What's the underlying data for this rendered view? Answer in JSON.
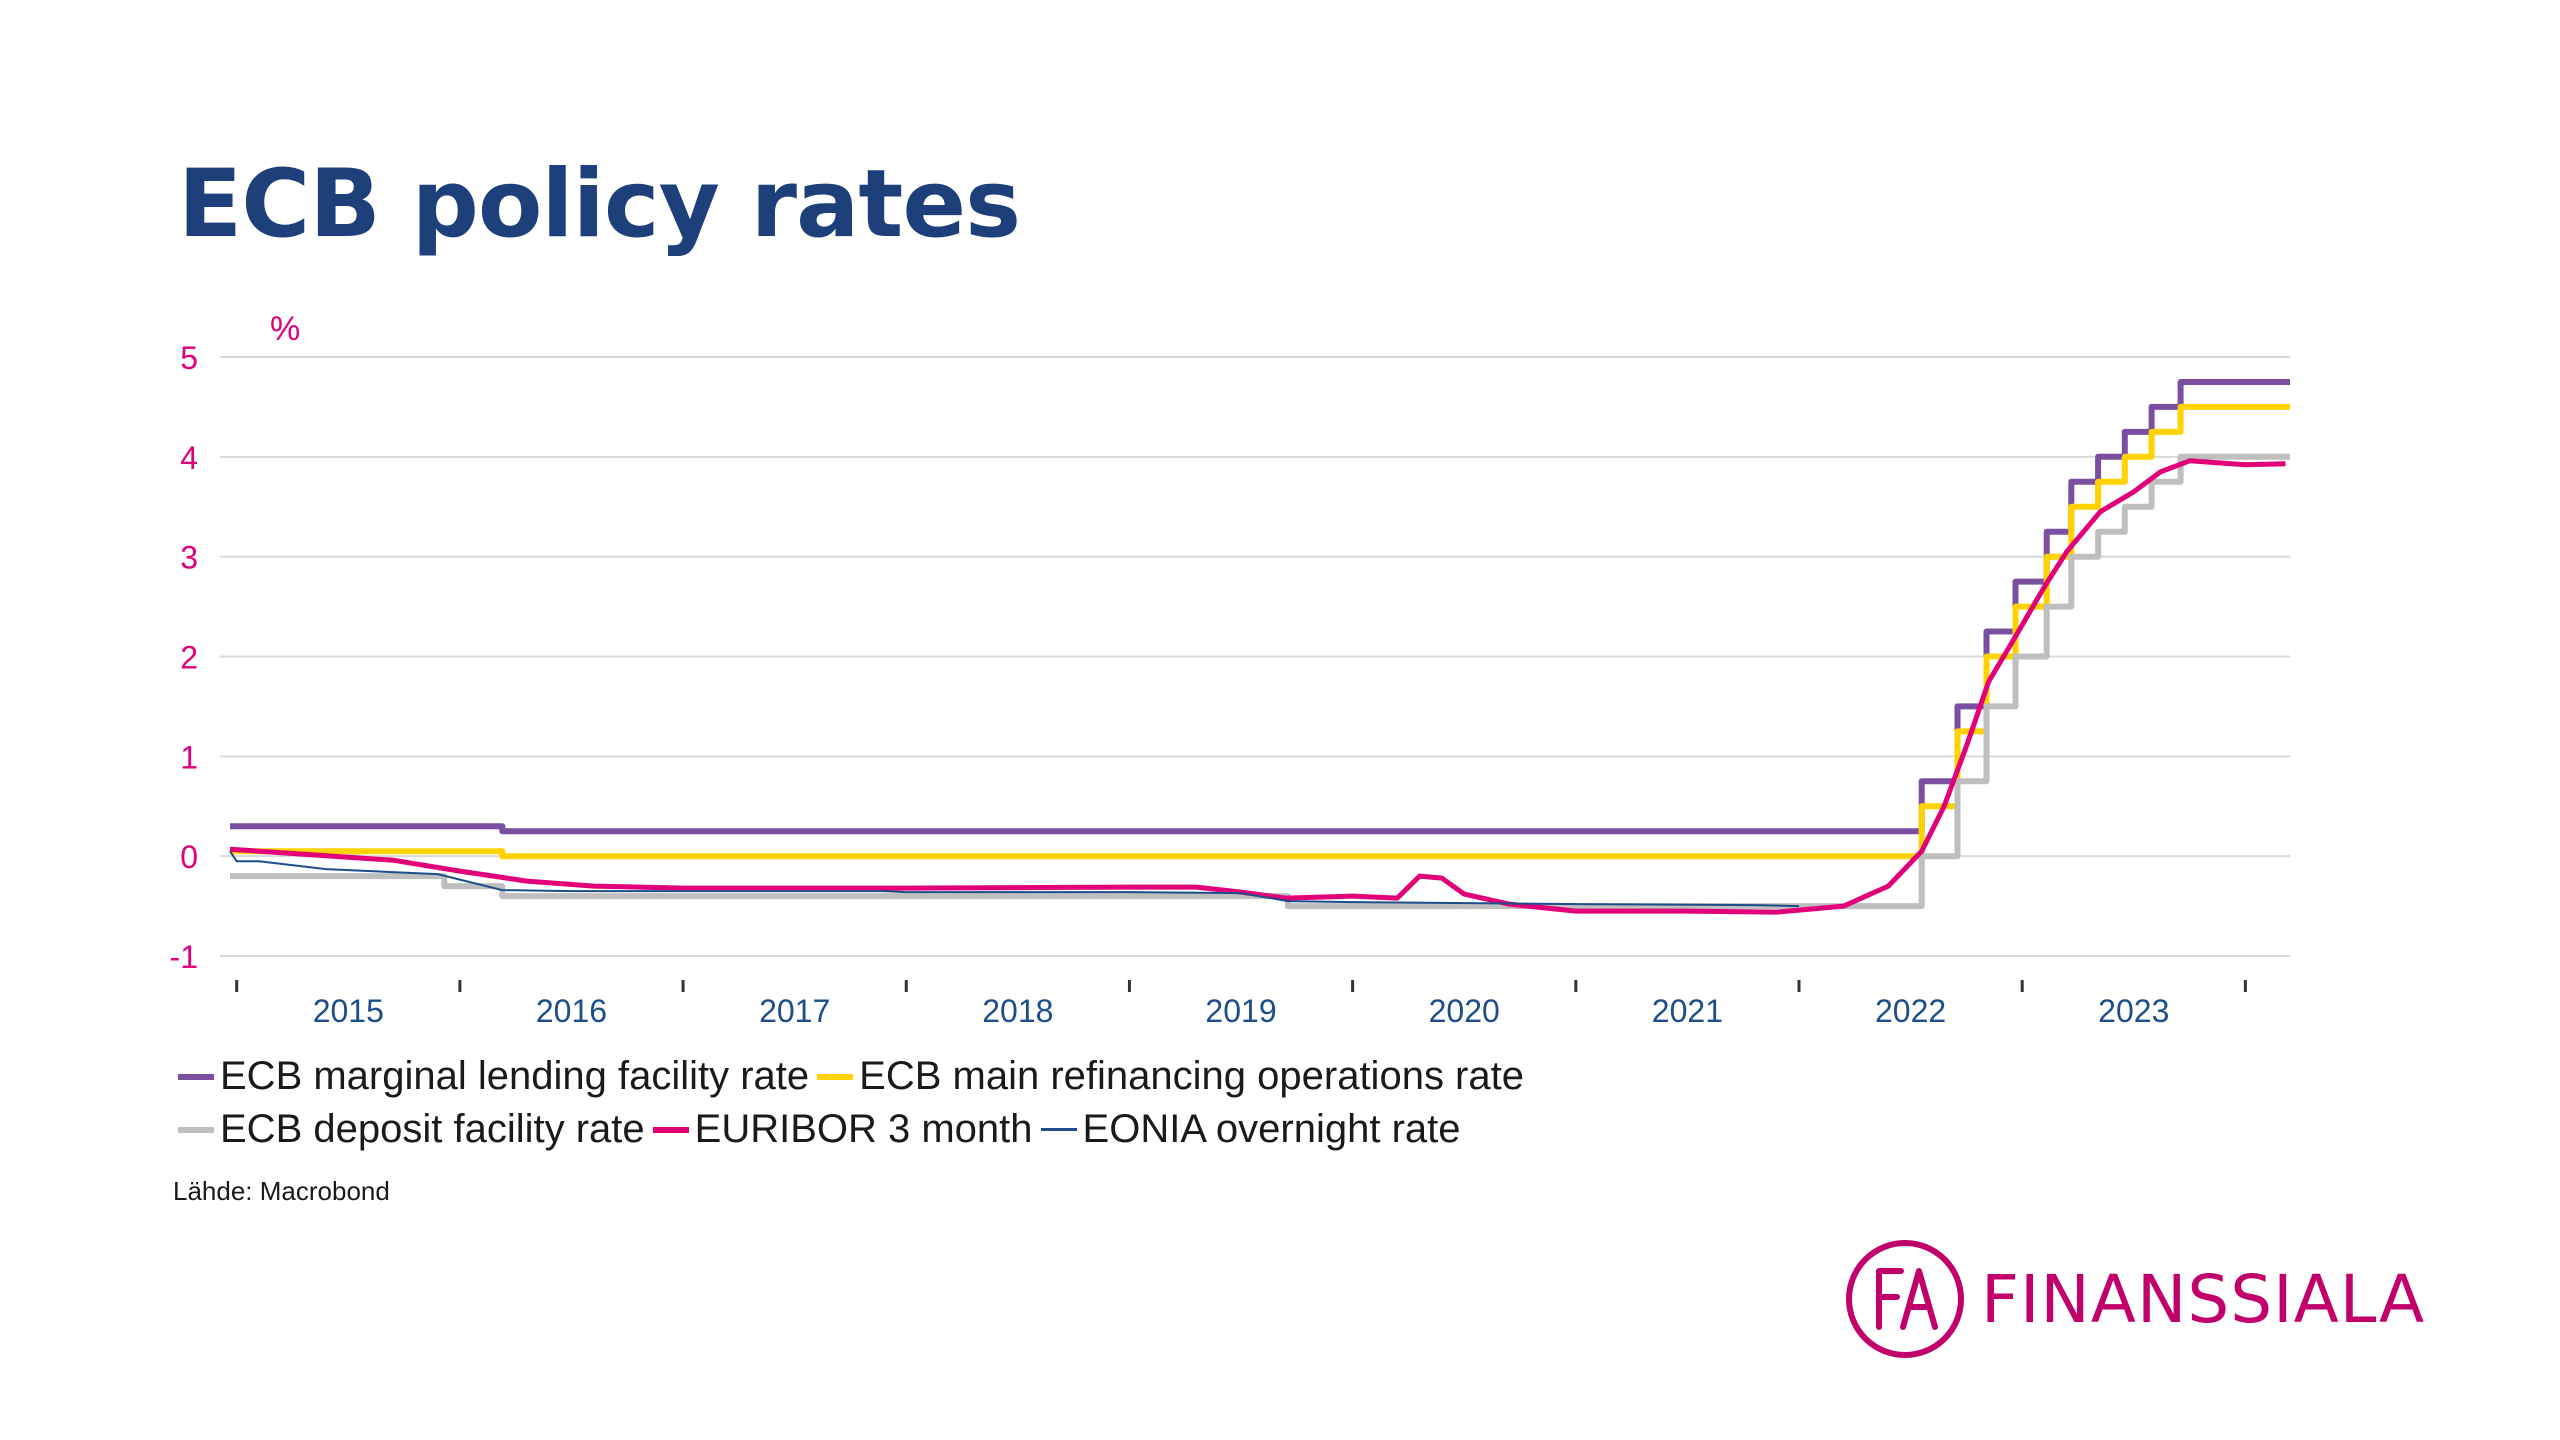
{
  "title": "ECB policy rates",
  "source": "Lähde: Macrobond",
  "logo": {
    "text": "FINANSSIALA",
    "monogram": "FA",
    "color": "#c2006b"
  },
  "colors": {
    "title": "#1d3f7a",
    "tick_y": "#e2007a",
    "tick_x": "#1d4e89",
    "grid": "#d9d9d9"
  },
  "chart_data": {
    "type": "line",
    "ylabel": "%",
    "ylim": [
      -1,
      5
    ],
    "yticks": [
      5,
      4,
      3,
      2,
      1,
      0,
      -1
    ],
    "xlim": [
      2014.97,
      2024.2
    ],
    "xticks": [
      2015,
      2016,
      2017,
      2018,
      2019,
      2020,
      2021,
      2022,
      2023
    ],
    "grid": true,
    "legend_position": "bottom",
    "series": [
      {
        "name": "ECB marginal lending facility rate",
        "color": "#7b4fa0",
        "width": 6,
        "step": true,
        "points": [
          [
            2014.97,
            0.3
          ],
          [
            2016.19,
            0.25
          ],
          [
            2022.55,
            0.75
          ],
          [
            2022.71,
            1.5
          ],
          [
            2022.84,
            2.25
          ],
          [
            2022.97,
            2.75
          ],
          [
            2023.11,
            3.25
          ],
          [
            2023.22,
            3.75
          ],
          [
            2023.34,
            4.0
          ],
          [
            2023.46,
            4.25
          ],
          [
            2023.58,
            4.5
          ],
          [
            2023.71,
            4.75
          ],
          [
            2024.2,
            4.75
          ]
        ]
      },
      {
        "name": "ECB main refinancing operations rate",
        "color": "#ffd200",
        "width": 6,
        "step": true,
        "points": [
          [
            2014.97,
            0.05
          ],
          [
            2016.19,
            0.0
          ],
          [
            2022.55,
            0.5
          ],
          [
            2022.71,
            1.25
          ],
          [
            2022.84,
            2.0
          ],
          [
            2022.97,
            2.5
          ],
          [
            2023.11,
            3.0
          ],
          [
            2023.22,
            3.5
          ],
          [
            2023.34,
            3.75
          ],
          [
            2023.46,
            4.0
          ],
          [
            2023.58,
            4.25
          ],
          [
            2023.71,
            4.5
          ],
          [
            2024.2,
            4.5
          ]
        ]
      },
      {
        "name": "ECB deposit facility rate",
        "color": "#bfbfbf",
        "width": 6,
        "step": true,
        "points": [
          [
            2014.97,
            -0.2
          ],
          [
            2015.93,
            -0.3
          ],
          [
            2016.19,
            -0.4
          ],
          [
            2019.71,
            -0.5
          ],
          [
            2022.55,
            0.0
          ],
          [
            2022.71,
            0.75
          ],
          [
            2022.84,
            1.5
          ],
          [
            2022.97,
            2.0
          ],
          [
            2023.11,
            2.5
          ],
          [
            2023.22,
            3.0
          ],
          [
            2023.34,
            3.25
          ],
          [
            2023.46,
            3.5
          ],
          [
            2023.58,
            3.75
          ],
          [
            2023.71,
            4.0
          ],
          [
            2024.2,
            4.0
          ]
        ]
      },
      {
        "name": "EURIBOR 3 month",
        "color": "#e2007a",
        "width": 5,
        "step": false,
        "points": [
          [
            2014.97,
            0.07
          ],
          [
            2015.3,
            0.02
          ],
          [
            2015.7,
            -0.04
          ],
          [
            2016.0,
            -0.15
          ],
          [
            2016.3,
            -0.25
          ],
          [
            2016.6,
            -0.3
          ],
          [
            2017.0,
            -0.32
          ],
          [
            2018.0,
            -0.32
          ],
          [
            2019.0,
            -0.31
          ],
          [
            2019.3,
            -0.31
          ],
          [
            2019.5,
            -0.36
          ],
          [
            2019.7,
            -0.42
          ],
          [
            2020.0,
            -0.4
          ],
          [
            2020.2,
            -0.42
          ],
          [
            2020.3,
            -0.2
          ],
          [
            2020.4,
            -0.22
          ],
          [
            2020.5,
            -0.38
          ],
          [
            2020.7,
            -0.48
          ],
          [
            2021.0,
            -0.55
          ],
          [
            2021.5,
            -0.55
          ],
          [
            2021.9,
            -0.56
          ],
          [
            2022.0,
            -0.54
          ],
          [
            2022.2,
            -0.5
          ],
          [
            2022.4,
            -0.3
          ],
          [
            2022.55,
            0.05
          ],
          [
            2022.65,
            0.5
          ],
          [
            2022.75,
            1.1
          ],
          [
            2022.85,
            1.75
          ],
          [
            2022.97,
            2.2
          ],
          [
            2023.1,
            2.7
          ],
          [
            2023.2,
            3.05
          ],
          [
            2023.35,
            3.45
          ],
          [
            2023.5,
            3.65
          ],
          [
            2023.62,
            3.85
          ],
          [
            2023.75,
            3.96
          ],
          [
            2024.0,
            3.92
          ],
          [
            2024.18,
            3.93
          ]
        ]
      },
      {
        "name": "EONIA overnight rate",
        "color": "#1d4e89",
        "width": 2,
        "step": false,
        "points": [
          [
            2014.97,
            0.05
          ],
          [
            2015.0,
            -0.05
          ],
          [
            2015.1,
            -0.05
          ],
          [
            2015.4,
            -0.13
          ],
          [
            2015.9,
            -0.18
          ],
          [
            2016.19,
            -0.34
          ],
          [
            2016.5,
            -0.35
          ],
          [
            2017.0,
            -0.35
          ],
          [
            2017.9,
            -0.35
          ],
          [
            2018.0,
            -0.36
          ],
          [
            2019.0,
            -0.36
          ],
          [
            2019.5,
            -0.37
          ],
          [
            2019.71,
            -0.45
          ],
          [
            2020.0,
            -0.46
          ],
          [
            2021.0,
            -0.48
          ],
          [
            2021.8,
            -0.49
          ],
          [
            2022.0,
            -0.5
          ]
        ]
      }
    ]
  }
}
